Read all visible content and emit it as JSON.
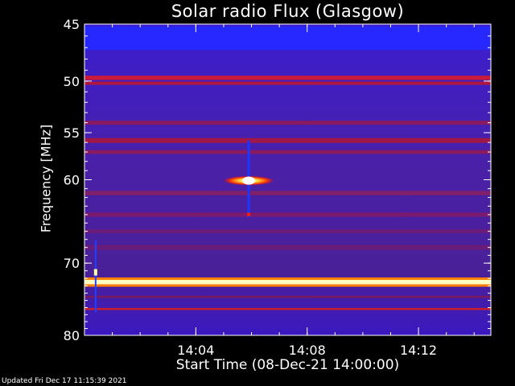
{
  "chart_data": {
    "type": "heatmap",
    "title": "Solar radio Flux (Glasgow)",
    "xlabel": "Start Time (08-Dec-21 14:00:00)",
    "ylabel": "Frequency [MHz]",
    "updated": "Updated Fri Dec 17 11:15:39 2021",
    "x_range_minutes": [
      0,
      14.6
    ],
    "x_ticks": [
      {
        "minute": 4,
        "label": "14:04"
      },
      {
        "minute": 8,
        "label": "14:08"
      },
      {
        "minute": 12,
        "label": "14:12"
      }
    ],
    "y_range_mhz": [
      45,
      80
    ],
    "y_ticks": [
      {
        "mhz": 45,
        "label": "45"
      },
      {
        "mhz": 50,
        "label": "50"
      },
      {
        "mhz": 55,
        "label": "55"
      },
      {
        "mhz": 60,
        "label": "60"
      },
      {
        "mhz": 70,
        "label": "70"
      },
      {
        "mhz": 80,
        "label": "80"
      }
    ],
    "bands": [
      {
        "mhz": 46.2,
        "width": 2.0,
        "color": "#2727ff"
      },
      {
        "mhz": 49.7,
        "width": 0.4,
        "color": "#c81a3a"
      },
      {
        "mhz": 50.2,
        "width": 0.3,
        "color": "#b01640"
      },
      {
        "mhz": 54.0,
        "width": 0.4,
        "color": "#8a1a60"
      },
      {
        "mhz": 55.8,
        "width": 0.5,
        "color": "#a01848"
      },
      {
        "mhz": 57.0,
        "width": 0.4,
        "color": "#8a1a60"
      },
      {
        "mhz": 61.5,
        "width": 0.5,
        "color": "#80206a"
      },
      {
        "mhz": 64.0,
        "width": 0.5,
        "color": "#7a1a70"
      },
      {
        "mhz": 66.0,
        "width": 0.5,
        "color": "#6a1c7a"
      },
      {
        "mhz": 68.0,
        "width": 0.6,
        "color": "#6a1c7a"
      },
      {
        "mhz": 72.5,
        "width": 0.6,
        "color": "#ffffc0"
      },
      {
        "mhz": 74.5,
        "width": 0.3,
        "color": "#7a1a60"
      },
      {
        "mhz": 76.2,
        "width": 0.3,
        "color": "#c02030"
      }
    ],
    "bursts": [
      {
        "minute": 5.9,
        "mhz": 60.1,
        "intensity": "max"
      },
      {
        "minute": 0.4,
        "mhz": 71.2,
        "intensity": "high"
      }
    ]
  }
}
